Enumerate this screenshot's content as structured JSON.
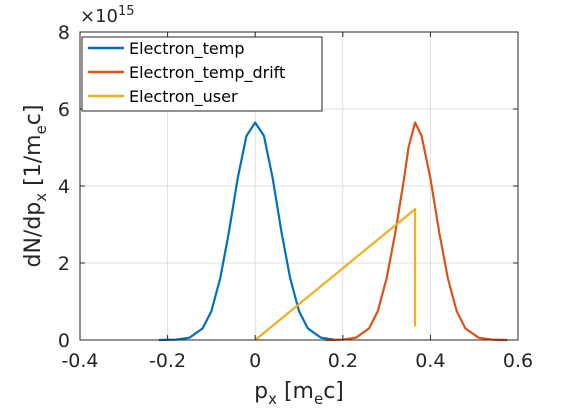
{
  "chart_data": {
    "type": "line",
    "xlabel": {
      "base": "p",
      "sub": "x",
      "unit_open": " [m",
      "unit_sub": "e",
      "unit_close": "c]"
    },
    "ylabel": {
      "a": "dN/dp",
      "a_sub": "x",
      "b": " [1/m",
      "b_sub": "e",
      "c": "c]"
    },
    "y_multiplier": {
      "base": "×10",
      "exp": "15"
    },
    "xlim": [
      -0.4,
      0.6
    ],
    "ylim": [
      0,
      8
    ],
    "x_ticks": [
      -0.4,
      -0.2,
      0,
      0.2,
      0.4,
      0.6
    ],
    "x_tick_labels": [
      "-0.4",
      "-0.2",
      "0",
      "0.2",
      "0.4",
      "0.6"
    ],
    "y_ticks": [
      0,
      2,
      4,
      6,
      8
    ],
    "y_tick_labels": [
      "0",
      "2",
      "4",
      "6",
      "8"
    ],
    "grid": true,
    "legend_position": "top-left",
    "series": [
      {
        "name": "Electron_temp",
        "color": "#0072BD",
        "x": [
          -0.22,
          -0.18,
          -0.15,
          -0.12,
          -0.1,
          -0.08,
          -0.06,
          -0.04,
          -0.02,
          0.0,
          0.02,
          0.04,
          0.06,
          0.08,
          0.1,
          0.12,
          0.15,
          0.18
        ],
        "y": [
          0.0,
          0.01,
          0.06,
          0.3,
          0.75,
          1.6,
          2.8,
          4.2,
          5.3,
          5.65,
          5.3,
          4.2,
          2.8,
          1.6,
          0.75,
          0.3,
          0.06,
          0.01
        ]
      },
      {
        "name": "Electron_temp_drift",
        "color": "#D95319",
        "x": [
          0.16,
          0.2,
          0.23,
          0.26,
          0.28,
          0.3,
          0.32,
          0.34,
          0.35,
          0.365,
          0.38,
          0.4,
          0.42,
          0.44,
          0.46,
          0.48,
          0.51,
          0.54,
          0.575
        ],
        "y": [
          0.0,
          0.01,
          0.06,
          0.3,
          0.75,
          1.6,
          2.8,
          4.2,
          5.0,
          5.65,
          5.3,
          4.2,
          2.8,
          1.6,
          0.75,
          0.3,
          0.06,
          0.01,
          0.0
        ]
      },
      {
        "name": "Electron_user",
        "color": "#EDB120",
        "x": [
          0.0,
          0.365,
          0.365
        ],
        "y": [
          0.0,
          3.4,
          0.35
        ]
      }
    ]
  }
}
